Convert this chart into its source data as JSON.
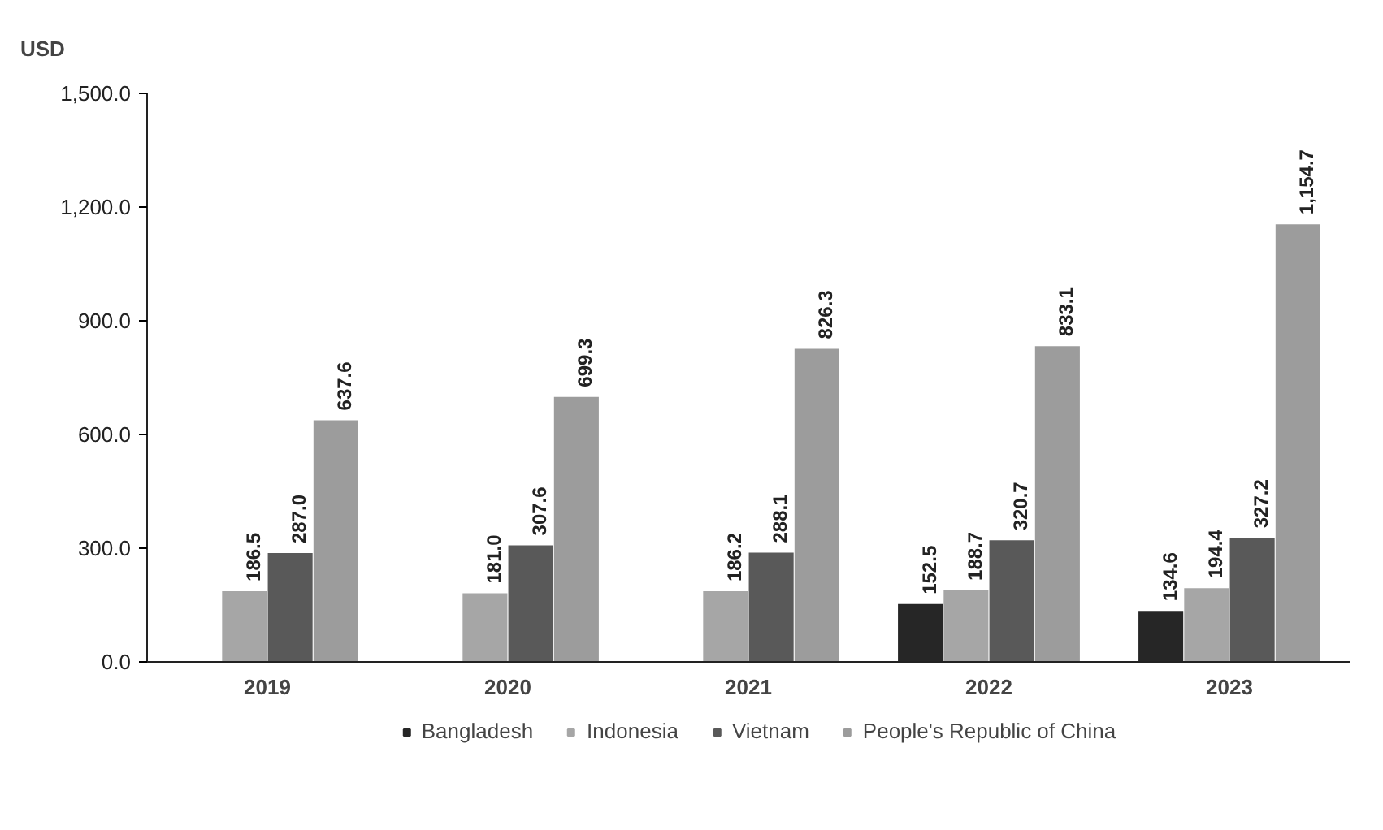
{
  "chart_data": {
    "type": "bar",
    "ylabel": "USD",
    "categories": [
      "2019",
      "2020",
      "2021",
      "2022",
      "2023"
    ],
    "series": [
      {
        "name": "Bangladesh",
        "color": "#262626",
        "values": [
          null,
          null,
          null,
          152.5,
          134.6
        ],
        "value_labels": [
          null,
          null,
          null,
          "152.5",
          "134.6"
        ]
      },
      {
        "name": "Indonesia",
        "color": "#a6a6a6",
        "values": [
          186.5,
          181.0,
          186.2,
          188.7,
          194.4
        ],
        "value_labels": [
          "186.5",
          "181.0",
          "186.2",
          "188.7",
          "194.4"
        ]
      },
      {
        "name": "Vietnam",
        "color": "#595959",
        "values": [
          287.0,
          307.6,
          288.1,
          320.7,
          327.2
        ],
        "value_labels": [
          "287.0",
          "307.6",
          "288.1",
          "320.7",
          "327.2"
        ]
      },
      {
        "name": "People's Republic of China",
        "color": "#9c9c9c",
        "values": [
          637.6,
          699.3,
          826.3,
          833.1,
          1154.7
        ],
        "value_labels": [
          "637.6",
          "699.3",
          "826.3",
          "833.1",
          "1,154.7"
        ]
      }
    ],
    "ylim": [
      0,
      1500
    ],
    "yticks": [
      {
        "value": 0,
        "label": "0.0"
      },
      {
        "value": 300,
        "label": "300.0"
      },
      {
        "value": 600,
        "label": "600.0"
      },
      {
        "value": 900,
        "label": "900.0"
      },
      {
        "value": 1200,
        "label": "1,200.0"
      },
      {
        "value": 1500,
        "label": "1,500.0"
      }
    ],
    "grid": false,
    "legend": "bottom"
  }
}
